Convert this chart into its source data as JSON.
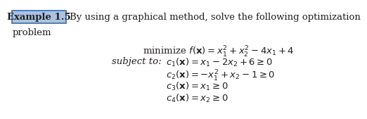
{
  "bg_color": "#ffffff",
  "text_color": "#231f20",
  "box_facecolor": "#a8c4e0",
  "box_edgecolor": "#3a6ea8",
  "font_size": 9.5,
  "example_label": "Example 1.5",
  "header_text": "By using a graphical method, solve the following optimization",
  "header_text2": "problem",
  "math_line1": "minimize $f(\\mathbf{x}) = x_1^2 + x_2^2 - 4x_1 + 4$",
  "math_line2_label": "subject to:",
  "math_line2_eq": "$c_1(\\mathbf{x}) = x_1 - 2x_2 + 6 \\geq 0$",
  "math_line3": "$c_2(\\mathbf{x}) = -x_1^2 + x_2 - 1 \\geq 0$",
  "math_line4": "$c_3(\\mathbf{x}) = x_1 \\geq 0$",
  "math_line5": "$c_4(\\mathbf{x}) = x_2 \\geq 0$"
}
